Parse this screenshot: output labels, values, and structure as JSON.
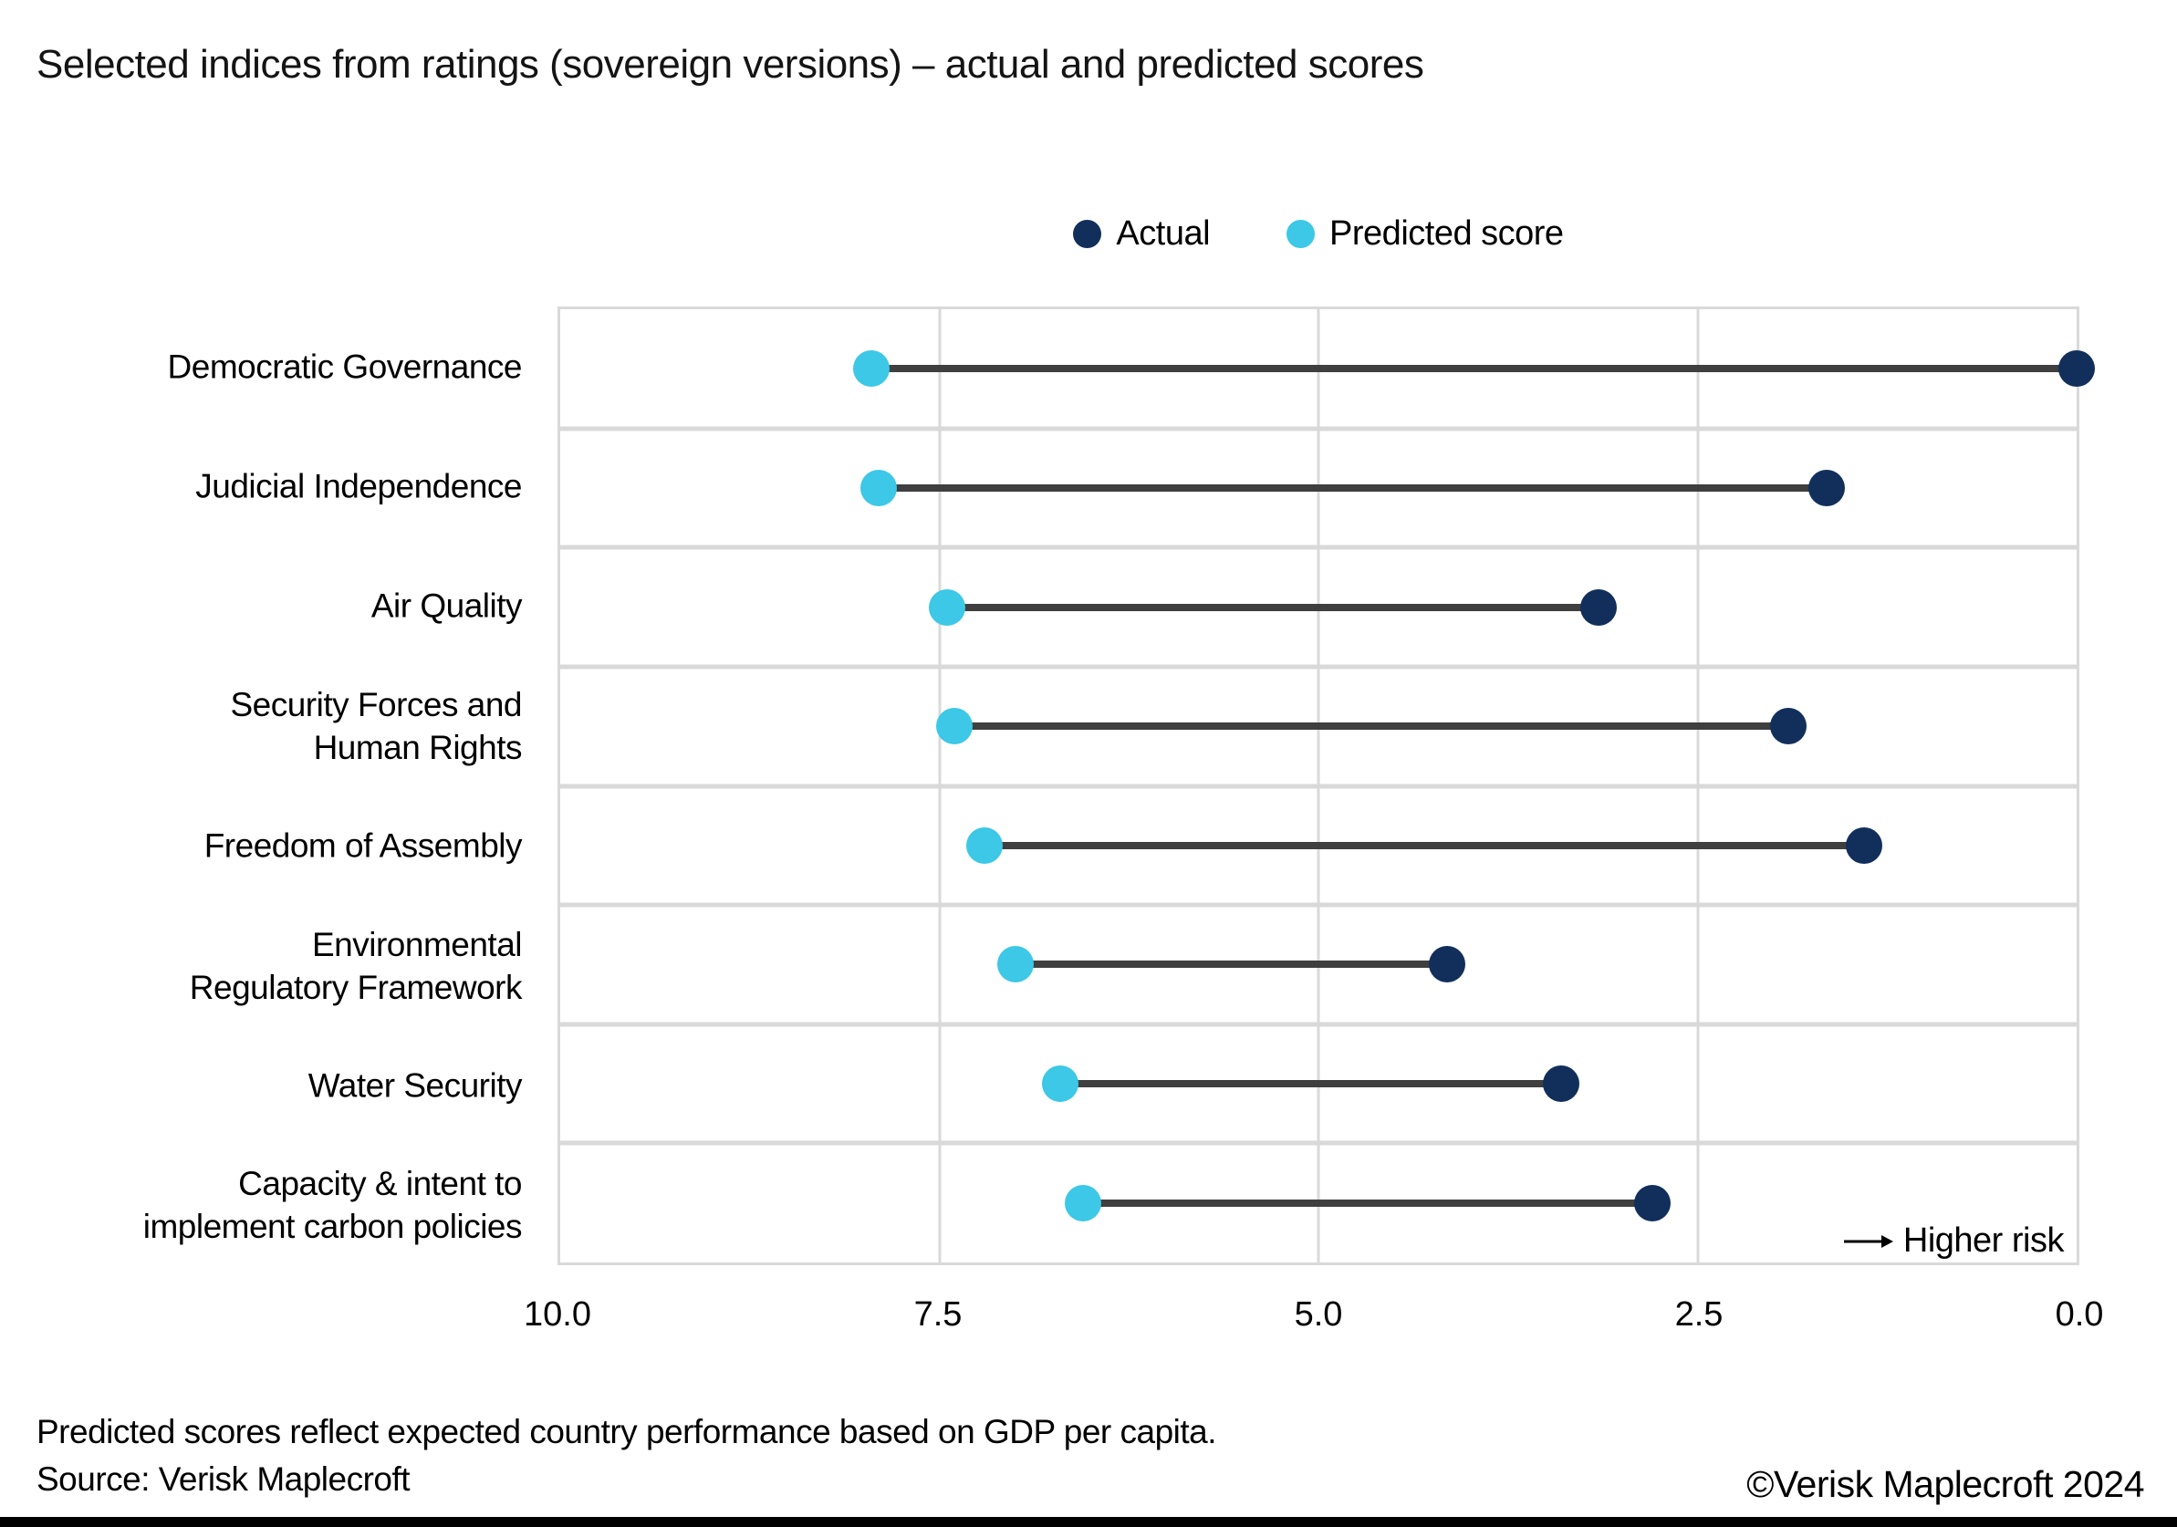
{
  "title": "Selected indices from ratings (sovereign versions) – actual and predicted scores",
  "legend": [
    {
      "label": "Actual",
      "color": "#122f5b"
    },
    {
      "label": "Predicted score",
      "color": "#3cc8e6"
    }
  ],
  "chart_data": {
    "type": "scatter",
    "variant": "dumbbell",
    "categories": [
      "Democratic Governance",
      "Judicial Independence",
      "Air Quality",
      "Security Forces and\nHuman Rights",
      "Freedom of Assembly",
      "Environmental\nRegulatory Framework",
      "Water Security",
      "Capacity & intent to\nimplement carbon policies"
    ],
    "series": [
      {
        "name": "Actual",
        "color": "#122f5b",
        "values": [
          0.0,
          1.65,
          3.15,
          1.9,
          1.4,
          4.15,
          3.4,
          2.8
        ]
      },
      {
        "name": "Predicted score",
        "color": "#3cc8e6",
        "values": [
          7.95,
          7.9,
          7.45,
          7.4,
          7.2,
          7.0,
          6.7,
          6.55
        ]
      }
    ],
    "xlim": [
      10.0,
      0.0
    ],
    "x_ticks": [
      "10.0",
      "7.5",
      "5.0",
      "2.5",
      "0.0"
    ],
    "xlabel": "",
    "ylabel": "",
    "grid": true,
    "legend_position": "top-center",
    "connector_color": "#3f3f3f",
    "grid_color": "#d9d9d9",
    "annotation": "Higher risk"
  },
  "footer": {
    "note": "Predicted scores reflect expected country performance based on GDP per capita.",
    "source": "Source: Verisk Maplecroft",
    "copyright": "©Verisk Maplecroft 2024"
  }
}
